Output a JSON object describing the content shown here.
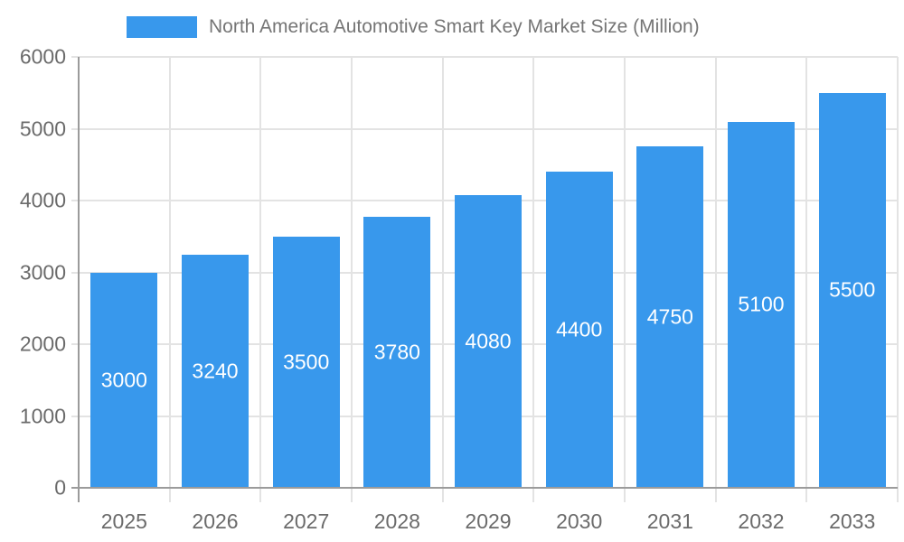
{
  "legend": {
    "label": "North America Automotive Smart Key Market Size (Million)"
  },
  "chart_data": {
    "type": "bar",
    "title": "North America Automotive Smart Key Market Size (Million)",
    "categories": [
      "2025",
      "2026",
      "2027",
      "2028",
      "2029",
      "2030",
      "2031",
      "2032",
      "2033"
    ],
    "values": [
      3000,
      3240,
      3500,
      3780,
      4080,
      4400,
      4750,
      5100,
      5500
    ],
    "bar_value_labels": [
      "3000",
      "3240",
      "3500",
      "3780",
      "4080",
      "4400",
      "4750",
      "5100",
      "5500"
    ],
    "xlabel": "",
    "ylabel": "",
    "ylim": [
      0,
      6000
    ],
    "yticks": [
      0,
      1000,
      2000,
      3000,
      4000,
      5000,
      6000
    ],
    "grid": true,
    "legend_position": "top",
    "value_labels_inside_bars": true
  },
  "colors": {
    "bar": "#3898ec",
    "grid": "#e3e3e3",
    "axis": "#9b9b9b",
    "tick_text": "#6b6b6b",
    "legend_text": "#757575",
    "bar_label": "#ffffff"
  }
}
